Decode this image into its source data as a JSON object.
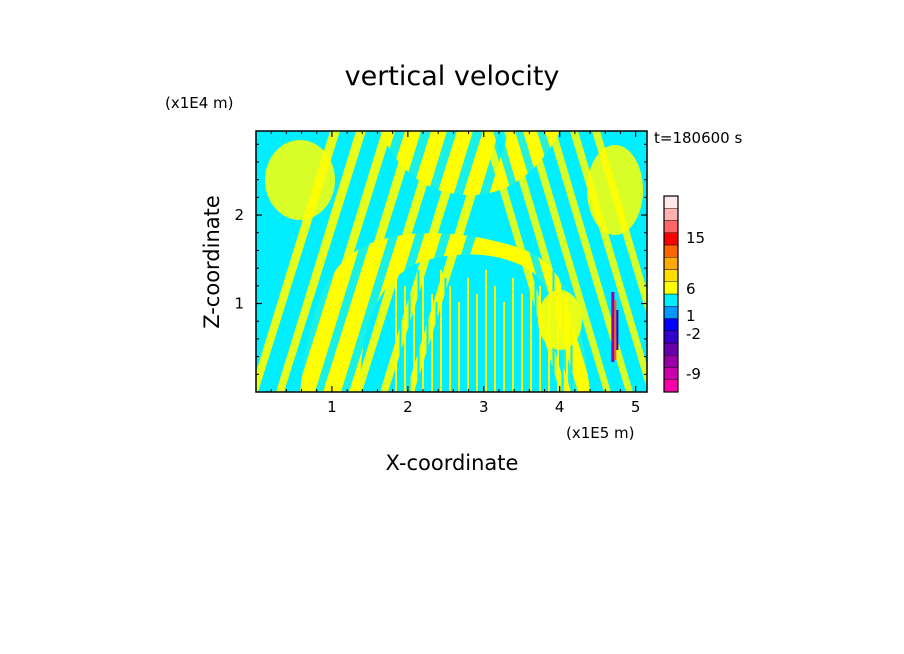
{
  "chart_data": {
    "type": "heatmap",
    "title": "vertical velocity",
    "xlabel": "X-coordinate",
    "ylabel": "Z-coordinate",
    "x_unit": "(x1E5 m)",
    "y_unit": "(x1E4 m)",
    "time_label": "t=180600 s",
    "xlim": [
      0,
      5.15
    ],
    "ylim": [
      0,
      2.95
    ],
    "x_ticks": [
      "1",
      "2",
      "3",
      "4",
      "5"
    ],
    "y_ticks": [
      "1",
      "2"
    ],
    "colorbar": {
      "levels": [
        {
          "color": "#ff00aa"
        },
        {
          "color": "#cc00aa"
        },
        {
          "color": "#9900aa"
        },
        {
          "color": "#6600aa"
        },
        {
          "color": "#3300cc"
        },
        {
          "color": "#0000ff"
        },
        {
          "color": "#0099ff"
        },
        {
          "color": "#00eeff"
        },
        {
          "color": "#ffff00"
        },
        {
          "color": "#ffdd00"
        },
        {
          "color": "#ffaa00"
        },
        {
          "color": "#ff6600"
        },
        {
          "color": "#ff0000"
        },
        {
          "color": "#ff6666"
        },
        {
          "color": "#ffb0b0"
        },
        {
          "color": "#ffe8e8"
        }
      ],
      "labels": [
        "15",
        "6",
        "1",
        "-2",
        "-9"
      ]
    },
    "field_colors": {
      "positive": "#ffff00",
      "negative": "#00eeff"
    }
  }
}
